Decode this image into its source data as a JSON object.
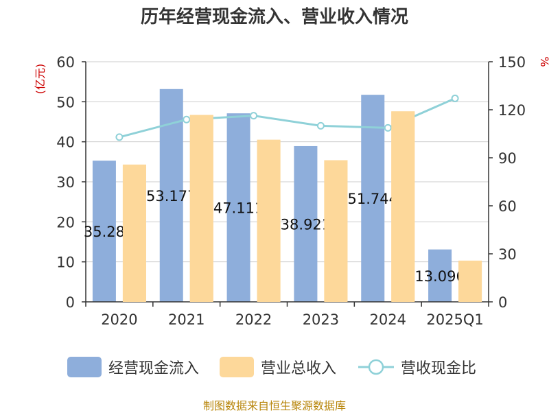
{
  "chart_data": {
    "type": "bar",
    "title": "历年经营现金流入、营业收入情况",
    "categories": [
      "2020",
      "2021",
      "2022",
      "2023",
      "2024",
      "2025Q1"
    ],
    "series": [
      {
        "name": "经营现金流入",
        "type": "bar",
        "axis": "left",
        "color": "#8eaedb",
        "values": [
          35.28,
          53.177,
          47.111,
          38.921,
          51.744,
          13.096
        ],
        "labels": [
          "35.28",
          "53.177",
          "47.111",
          "38.921",
          "51.744",
          "13.096"
        ]
      },
      {
        "name": "营业总收入",
        "type": "bar",
        "axis": "left",
        "color": "#fdd89a",
        "values": [
          34.3,
          46.7,
          40.5,
          35.4,
          47.6,
          10.3
        ]
      },
      {
        "name": "营收现金比",
        "type": "line",
        "axis": "right",
        "color": "#8fd1d8",
        "values": [
          102.9,
          113.9,
          116.3,
          110.0,
          108.7,
          127.1
        ]
      }
    ],
    "ylabel": "(亿元)",
    "y2label": "%",
    "ylim": [
      0,
      60
    ],
    "y2lim": [
      0,
      150
    ],
    "yticks": [
      0,
      10,
      20,
      30,
      40,
      50,
      60
    ],
    "y2ticks": [
      0,
      30,
      60,
      90,
      120,
      150
    ],
    "grid": true,
    "legend_position": "bottom"
  },
  "source": "制图数据来自恒生聚源数据库"
}
